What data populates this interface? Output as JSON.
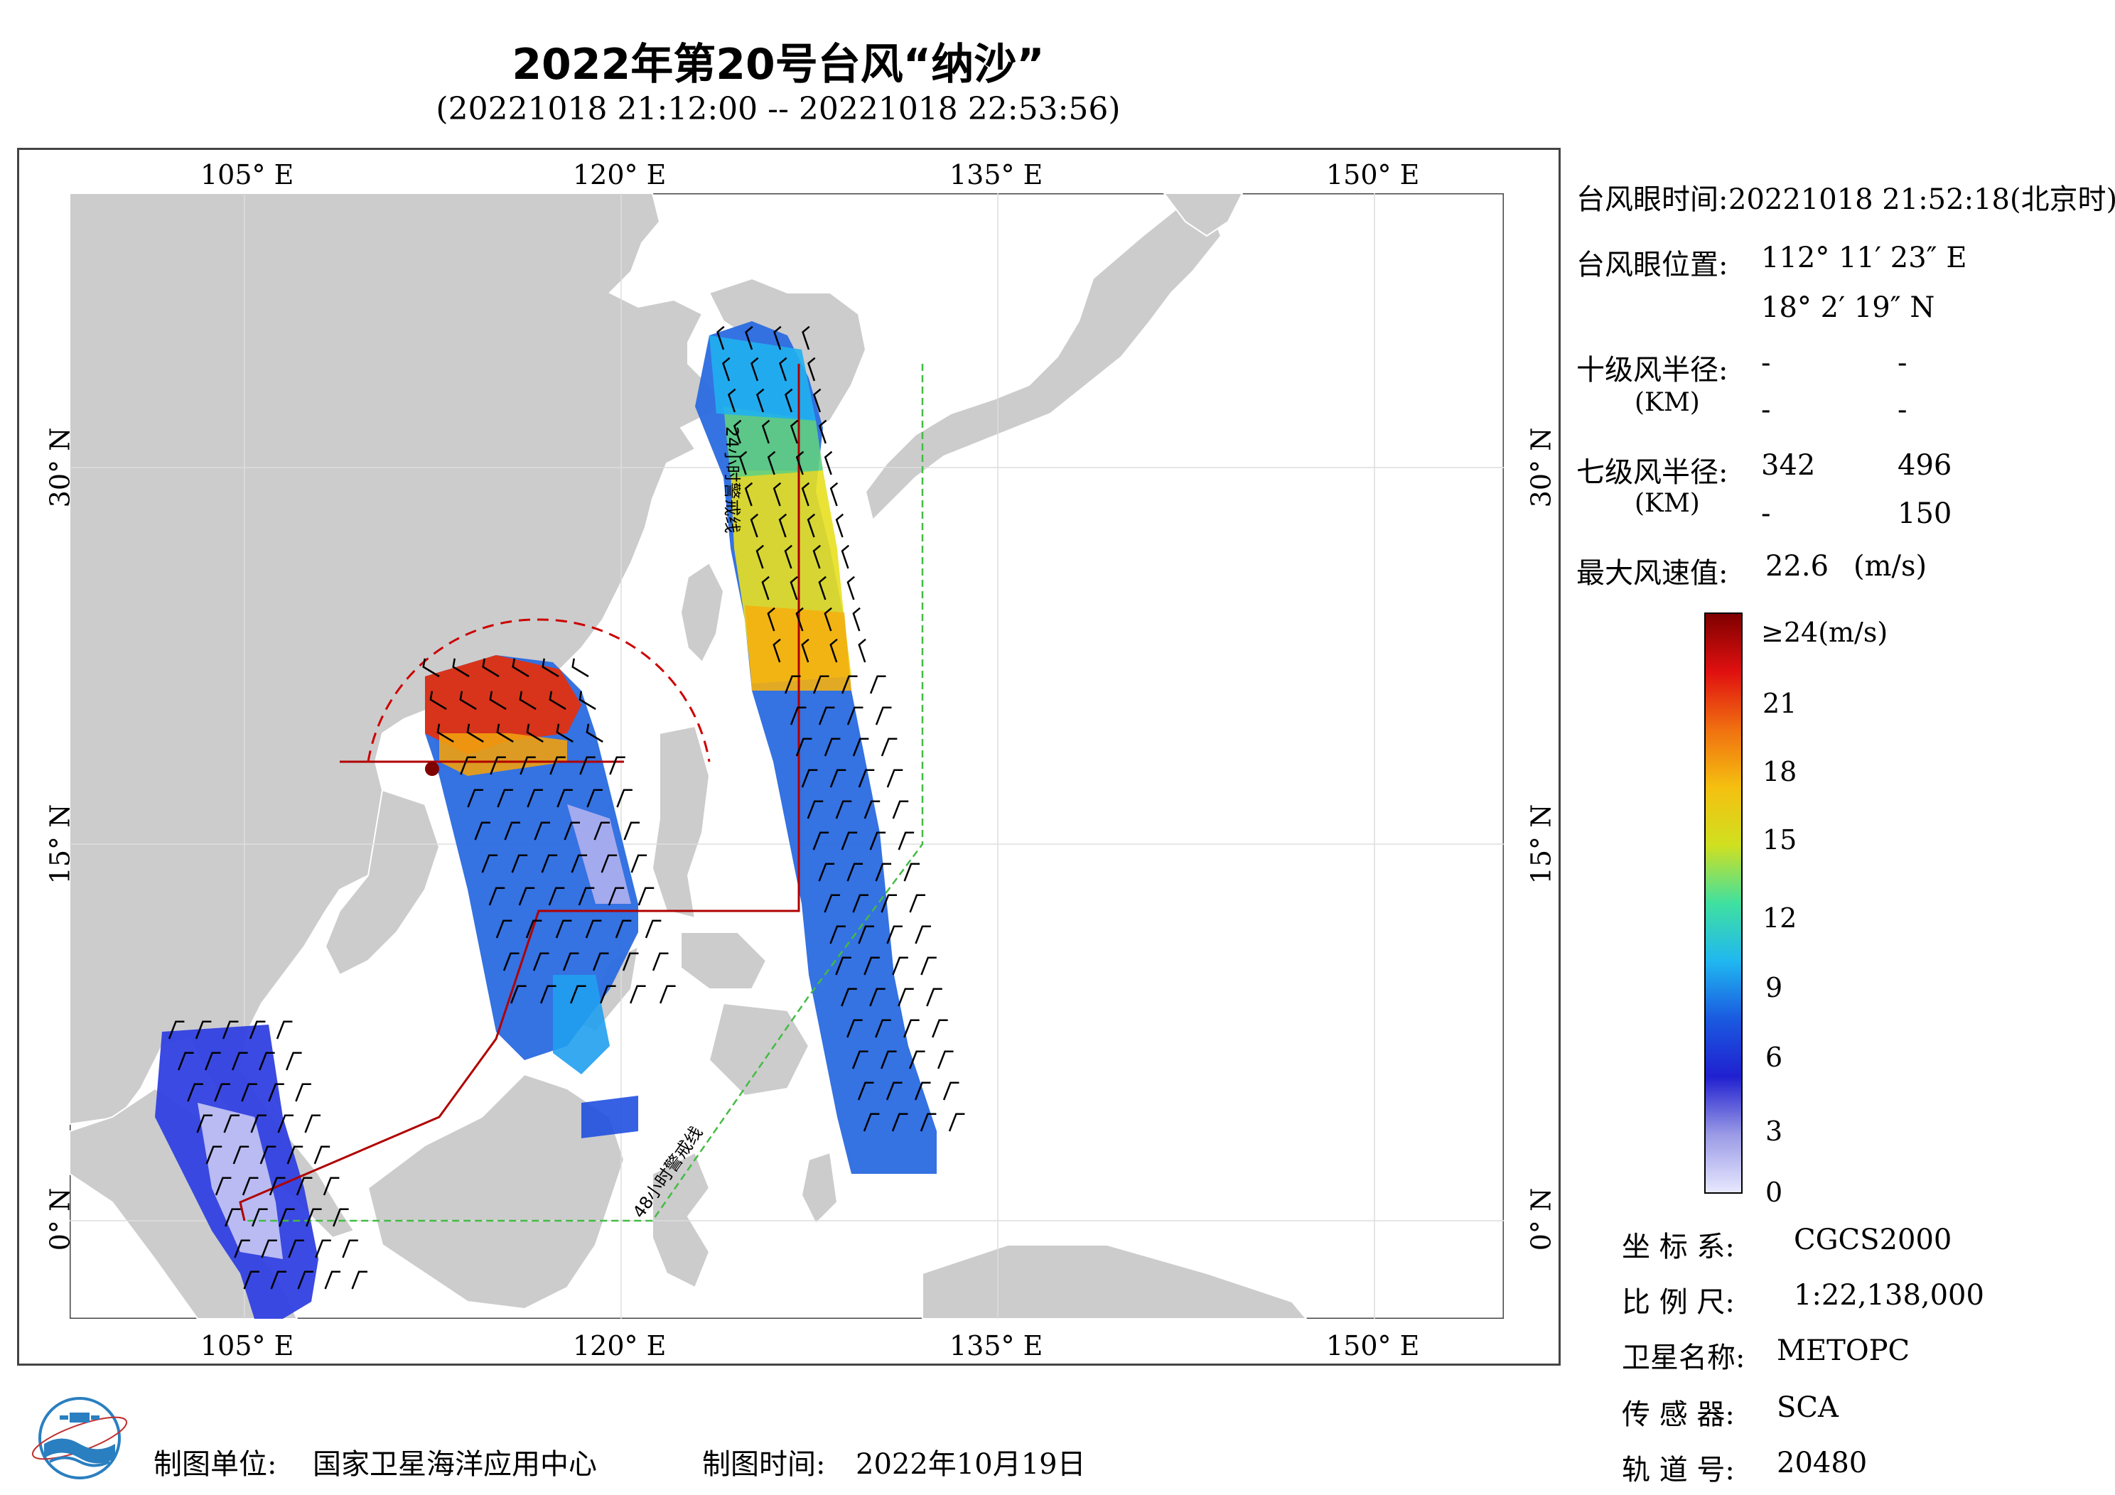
{
  "header": {
    "title": "2022年第20号台风“纳沙”",
    "subtitle": "(20221018 21:12:00 -- 20221018 22:53:56)"
  },
  "map": {
    "lon_labels": [
      "105° E",
      "120° E",
      "135° E",
      "150° E"
    ],
    "lat_labels": [
      "30° N",
      "15° N",
      "0° N"
    ],
    "warning_24h": "24小时警戒线",
    "warning_48h": "48小时警戒线",
    "colors": {
      "land": "#cccccc",
      "sea": "#ffffff",
      "warning_24h_line": "#b00000",
      "warning_48h_line": "#44bb44",
      "gale_circle": "#cc0000"
    }
  },
  "info": {
    "eye_time_label": "台风眼时间:",
    "eye_time_value": "20221018 21:52:18(北京时)",
    "eye_pos_label": "台风眼位置:",
    "eye_lon": "112° 11′ 23″ E",
    "eye_lat": "18° 2′ 19″ N",
    "r10_label": "十级风半径:",
    "r10_unit": "(KM)",
    "r10_values": [
      "-",
      "-",
      "-",
      "-"
    ],
    "r7_label": "七级风半径:",
    "r7_unit": "(KM)",
    "r7_values": [
      "342",
      "496",
      "-",
      "150"
    ],
    "max_wind_label": "最大风速值:",
    "max_wind_value": "22.6",
    "max_wind_unit": "(m/s)"
  },
  "colorbar": {
    "labels": [
      "≥24(m/s)",
      "21",
      "18",
      "15",
      "12",
      "9",
      "6",
      "3",
      "0"
    ],
    "stops": [
      "#e8e8ff",
      "#9a9ae6",
      "#2020d0",
      "#1a5ae0",
      "#20b8f0",
      "#40e0a0",
      "#d0e020",
      "#f5c010",
      "#f07010",
      "#e01010",
      "#800000"
    ]
  },
  "meta": {
    "crs_label": "坐 标 系:",
    "crs_value": "CGCS2000",
    "scale_label": "比 例 尺:",
    "scale_value": "1:22,138,000",
    "satellite_label": "卫星名称:",
    "satellite_value": "METOPC",
    "sensor_label": "传 感 器:",
    "sensor_value": "SCA",
    "orbit_label": "轨 道 号:",
    "orbit_value": "20480"
  },
  "footer": {
    "producer_label": "制图单位:",
    "producer_value": "国家卫星海洋应用中心",
    "date_label": "制图时间:",
    "date_value": "2022年10月19日"
  }
}
